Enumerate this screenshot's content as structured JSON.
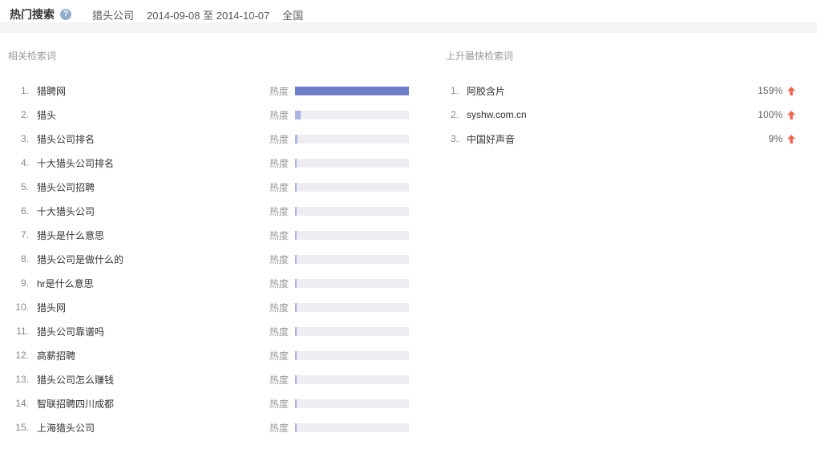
{
  "header": {
    "title": "热门搜索",
    "help_icon": "?",
    "keyword": "猎头公司",
    "date_range": "2014-09-08 至 2014-10-07",
    "region": "全国"
  },
  "related": {
    "section_title": "相关检索词",
    "heat_label": "热度",
    "items": [
      {
        "rank": "1.",
        "keyword": "猎聘网",
        "heat_pct": 100
      },
      {
        "rank": "2.",
        "keyword": "猎头",
        "heat_pct": 5
      },
      {
        "rank": "3.",
        "keyword": "猎头公司排名",
        "heat_pct": 2
      },
      {
        "rank": "4.",
        "keyword": "十大猎头公司排名",
        "heat_pct": 1.5
      },
      {
        "rank": "5.",
        "keyword": "猎头公司招聘",
        "heat_pct": 1.5
      },
      {
        "rank": "6.",
        "keyword": "十大猎头公司",
        "heat_pct": 1.5
      },
      {
        "rank": "7.",
        "keyword": "猎头是什么意思",
        "heat_pct": 1.5
      },
      {
        "rank": "8.",
        "keyword": "猎头公司是做什么的",
        "heat_pct": 1.5
      },
      {
        "rank": "9.",
        "keyword": "hr是什么意思",
        "heat_pct": 1.5
      },
      {
        "rank": "10.",
        "keyword": "猎头网",
        "heat_pct": 1.5
      },
      {
        "rank": "11.",
        "keyword": "猎头公司靠谱吗",
        "heat_pct": 1.5
      },
      {
        "rank": "12.",
        "keyword": "高薪招聘",
        "heat_pct": 1.5
      },
      {
        "rank": "13.",
        "keyword": "猎头公司怎么赚钱",
        "heat_pct": 1.5
      },
      {
        "rank": "14.",
        "keyword": "智联招聘四川成都",
        "heat_pct": 1.5
      },
      {
        "rank": "15.",
        "keyword": "上海猎头公司",
        "heat_pct": 1.5
      }
    ]
  },
  "rising": {
    "section_title": "上升最快检索词",
    "items": [
      {
        "rank": "1.",
        "keyword": "阿胶含片",
        "change": "159%",
        "arrow": "up-arrow"
      },
      {
        "rank": "2.",
        "keyword": "syshw.com.cn",
        "change": "100%",
        "arrow": "up-arrow"
      },
      {
        "rank": "3.",
        "keyword": "中国好声音",
        "change": "9%",
        "arrow": "up-arrow"
      }
    ]
  },
  "colors": {
    "bar_fill_strong": "#6e7fc9",
    "bar_fill_light": "#a9b5e0",
    "bar_track": "#eeeef2",
    "arrow": "#f4654e",
    "header_band": "#f4f4f5"
  }
}
